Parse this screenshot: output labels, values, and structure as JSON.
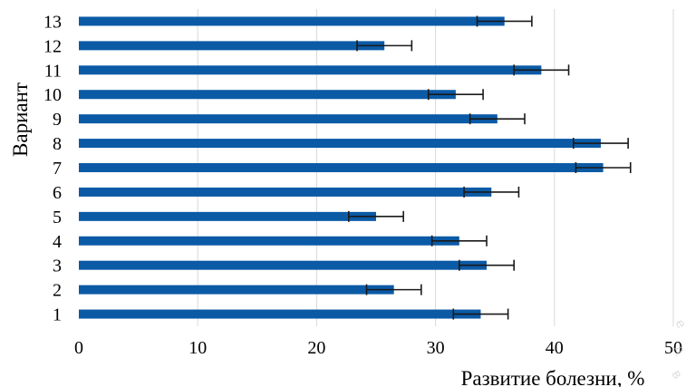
{
  "chart_data": {
    "type": "bar",
    "orientation": "horizontal",
    "categories": [
      "1",
      "2",
      "3",
      "4",
      "5",
      "6",
      "7",
      "8",
      "9",
      "10",
      "11",
      "12",
      "13"
    ],
    "values": [
      33.8,
      26.5,
      34.3,
      32.0,
      25.0,
      34.7,
      44.1,
      43.9,
      35.2,
      31.7,
      38.9,
      25.7,
      35.8
    ],
    "errors": [
      2.3,
      2.3,
      2.3,
      2.3,
      2.3,
      2.3,
      2.3,
      2.3,
      2.3,
      2.3,
      2.3,
      2.3,
      2.3
    ],
    "xlabel": "Развитие болезни, %",
    "ylabel": "Вариант",
    "xlim": [
      0,
      50
    ],
    "xticks": [
      "0",
      "10",
      "20",
      "30",
      "40",
      "50"
    ],
    "grid": "vertical",
    "bar_color": "#0b5aa6",
    "error_color": "#1a1a1a"
  }
}
